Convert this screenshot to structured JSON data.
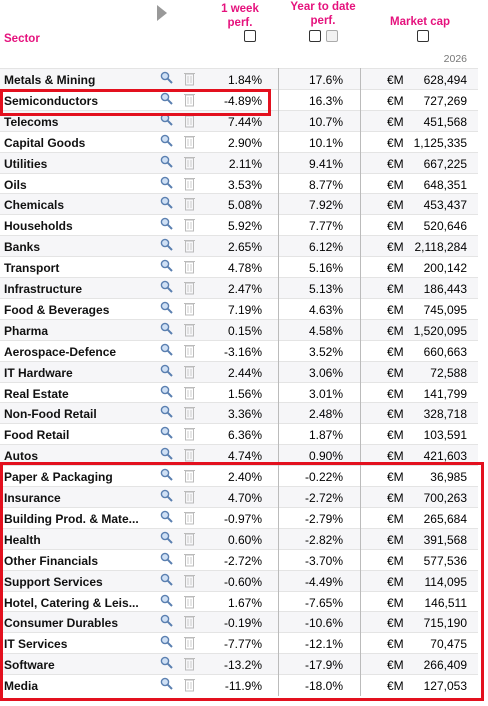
{
  "header": {
    "sector": "Sector",
    "week": "1 week perf.",
    "ytd": "Year to date perf.",
    "mcap": "Market cap",
    "year": "2026"
  },
  "table": {
    "rows": [
      [
        "Metals & Mining",
        "1.84%",
        "17.6%",
        "€M",
        "628,494"
      ],
      [
        "Semiconductors",
        "-4.89%",
        "16.3%",
        "€M",
        "727,269"
      ],
      [
        "Telecoms",
        "7.44%",
        "10.7%",
        "€M",
        "451,568"
      ],
      [
        "Capital Goods",
        "2.90%",
        "10.1%",
        "€M",
        "1,125,335"
      ],
      [
        "Utilities",
        "2.11%",
        "9.41%",
        "€M",
        "667,225"
      ],
      [
        "Oils",
        "3.53%",
        "8.77%",
        "€M",
        "648,351"
      ],
      [
        "Chemicals",
        "5.08%",
        "7.92%",
        "€M",
        "453,437"
      ],
      [
        "Households",
        "5.92%",
        "7.77%",
        "€M",
        "520,646"
      ],
      [
        "Banks",
        "2.65%",
        "6.12%",
        "€M",
        "2,118,284"
      ],
      [
        "Transport",
        "4.78%",
        "5.16%",
        "€M",
        "200,142"
      ],
      [
        "Infrastructure",
        "2.47%",
        "5.13%",
        "€M",
        "186,443"
      ],
      [
        "Food & Beverages",
        "7.19%",
        "4.63%",
        "€M",
        "745,095"
      ],
      [
        "Pharma",
        "0.15%",
        "4.58%",
        "€M",
        "1,520,095"
      ],
      [
        "Aerospace-Defence",
        "-3.16%",
        "3.52%",
        "€M",
        "660,663"
      ],
      [
        "IT Hardware",
        "2.44%",
        "3.06%",
        "€M",
        "72,588"
      ],
      [
        "Real Estate",
        "1.56%",
        "3.01%",
        "€M",
        "141,799"
      ],
      [
        "Non-Food Retail",
        "3.36%",
        "2.48%",
        "€M",
        "328,718"
      ],
      [
        "Food Retail",
        "6.36%",
        "1.87%",
        "€M",
        "103,591"
      ],
      [
        "Autos",
        "4.74%",
        "0.90%",
        "€M",
        "421,603"
      ],
      [
        "Paper & Packaging",
        "2.40%",
        "-0.22%",
        "€M",
        "36,985"
      ],
      [
        "Insurance",
        "4.70%",
        "-2.72%",
        "€M",
        "700,263"
      ],
      [
        "Building Prod. & Mate...",
        "-0.97%",
        "-2.79%",
        "€M",
        "265,684"
      ],
      [
        "Health",
        "0.60%",
        "-2.82%",
        "€M",
        "391,568"
      ],
      [
        "Other Financials",
        "-2.72%",
        "-3.70%",
        "€M",
        "577,536"
      ],
      [
        "Support Services",
        "-0.60%",
        "-4.49%",
        "€M",
        "114,095"
      ],
      [
        "Hotel, Catering & Leis...",
        "1.67%",
        "-7.65%",
        "€M",
        "146,511"
      ],
      [
        "Consumer Durables",
        "-0.19%",
        "-10.6%",
        "€M",
        "715,190"
      ],
      [
        "IT Services",
        "-7.77%",
        "-12.1%",
        "€M",
        "70,475"
      ],
      [
        "Software",
        "-13.2%",
        "-17.9%",
        "€M",
        "266,409"
      ],
      [
        "Media",
        "-11.9%",
        "-18.0%",
        "€M",
        "127,053"
      ]
    ]
  }
}
